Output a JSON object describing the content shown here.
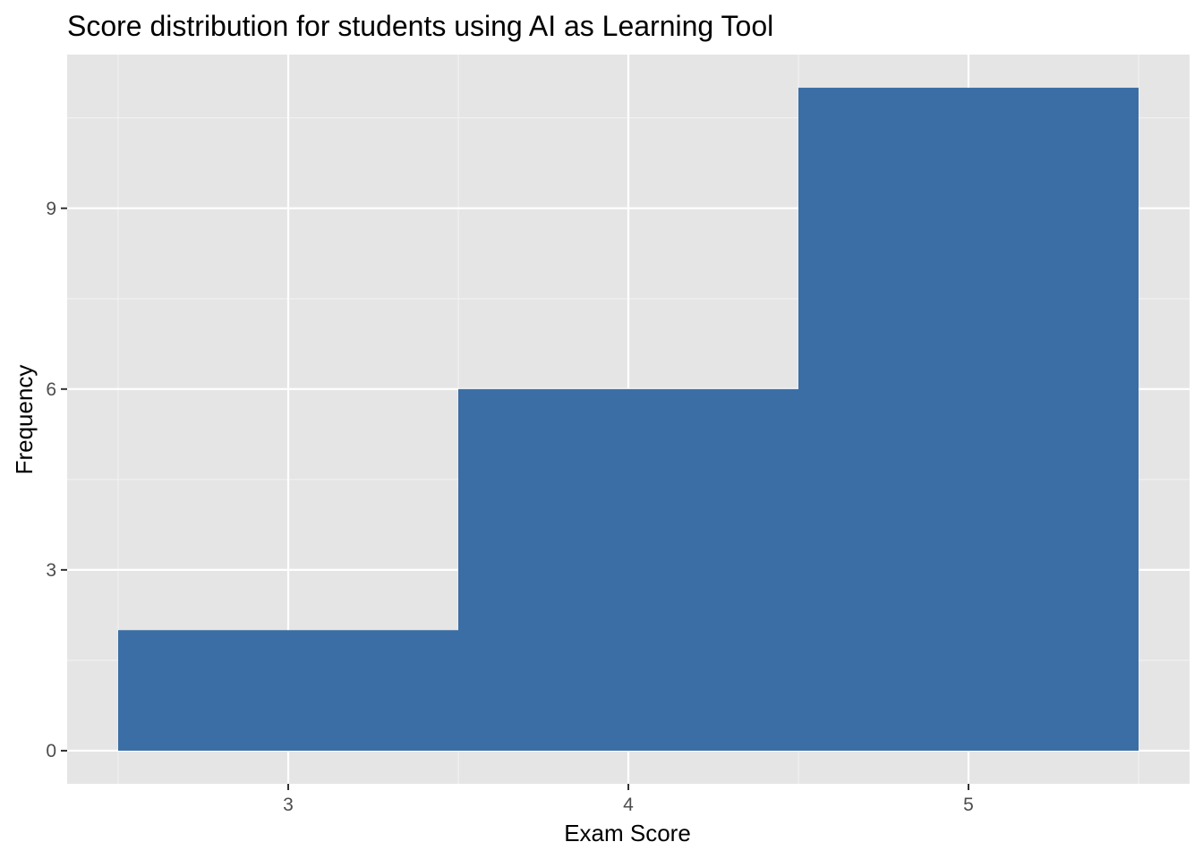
{
  "chart_data": {
    "type": "bar",
    "title": "Score distribution for students using AI as Learning Tool",
    "xlabel": "Exam Score",
    "ylabel": "Frequency",
    "bins": [
      {
        "x_start": 2.5,
        "x_end": 3.5,
        "value": 2
      },
      {
        "x_start": 3.5,
        "x_end": 4.5,
        "value": 6
      },
      {
        "x_start": 4.5,
        "x_end": 5.5,
        "value": 11
      }
    ],
    "x_ticks": [
      {
        "value": 3,
        "label": "3"
      },
      {
        "value": 4,
        "label": "4"
      },
      {
        "value": 5,
        "label": "5"
      }
    ],
    "y_ticks": [
      {
        "value": 0,
        "label": "0"
      },
      {
        "value": 3,
        "label": "3"
      },
      {
        "value": 6,
        "label": "6"
      },
      {
        "value": 9,
        "label": "9"
      }
    ],
    "xlim": [
      2.35,
      5.65
    ],
    "ylim": [
      -0.55,
      11.55
    ],
    "grid": true,
    "colors": {
      "bar": "#3A6EA5",
      "panel": "#E5E5E5",
      "grid_major": "#FFFFFF",
      "grid_minor": "#F2F2F2",
      "tick": "#333333"
    }
  }
}
